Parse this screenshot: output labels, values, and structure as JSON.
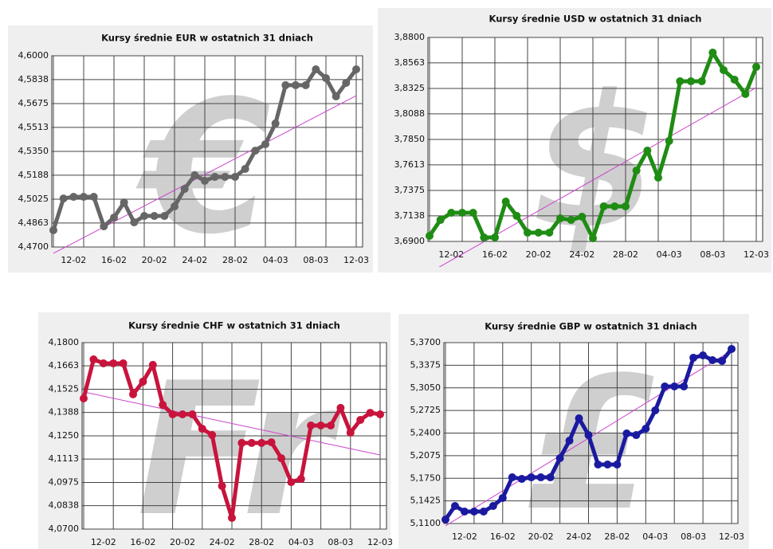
{
  "chart_data": [
    {
      "type": "line",
      "title": "Kursy średnie EUR w ostatnich 31 dniach",
      "watermark": "€",
      "color": "#666666",
      "trend_color": "#cc44cc",
      "grid": true,
      "categories": [
        null,
        null,
        "12-02",
        null,
        null,
        null,
        "16-02",
        null,
        null,
        null,
        "20-02",
        null,
        null,
        null,
        "24-02",
        null,
        null,
        null,
        "28-02",
        null,
        null,
        null,
        "04-03",
        null,
        null,
        null,
        "08-03",
        null,
        null,
        null,
        "12-03"
      ],
      "values": [
        4.4814,
        4.503,
        4.5041,
        4.5041,
        4.5041,
        4.4841,
        4.49,
        4.5003,
        4.4868,
        4.4911,
        4.4911,
        4.4911,
        4.4976,
        4.5095,
        4.5188,
        4.515,
        4.5177,
        4.5177,
        4.5177,
        4.5231,
        4.5355,
        4.5399,
        4.554,
        4.58,
        4.58,
        4.58,
        4.5908,
        4.5848,
        4.5724,
        4.5816,
        4.5908
      ],
      "trendline": [
        4.4657,
        4.5729
      ],
      "ylim": [
        4.47,
        4.6
      ],
      "yticks": [
        {
          "value": 4.47,
          "label": "4,4700"
        },
        {
          "value": 4.4863,
          "label": "4,4863"
        },
        {
          "value": 4.5025,
          "label": "4,5025"
        },
        {
          "value": 4.5188,
          "label": "4,5188"
        },
        {
          "value": 4.535,
          "label": "4,5350"
        },
        {
          "value": 4.5513,
          "label": "4,5513"
        },
        {
          "value": 4.5675,
          "label": "4,5675"
        },
        {
          "value": 4.5838,
          "label": "4,5838"
        },
        {
          "value": 4.6,
          "label": "4,6000"
        }
      ]
    },
    {
      "type": "line",
      "title": "Kursy średnie USD w ostatnich 31 dniach",
      "watermark": "$",
      "color": "#1f8c14",
      "trend_color": "#cc44cc",
      "grid": true,
      "categories": [
        null,
        null,
        "12-02",
        null,
        null,
        null,
        "16-02",
        null,
        null,
        null,
        "20-02",
        null,
        null,
        null,
        "24-02",
        null,
        null,
        null,
        "28-02",
        null,
        null,
        null,
        "04-03",
        null,
        null,
        null,
        "08-03",
        null,
        null,
        null,
        "12-03"
      ],
      "values": [
        3.6952,
        3.71,
        3.7167,
        3.7167,
        3.7167,
        3.6937,
        3.6937,
        3.7271,
        3.7138,
        3.6982,
        3.6982,
        3.6982,
        3.7115,
        3.71,
        3.713,
        3.693,
        3.7227,
        3.7227,
        3.7227,
        3.7561,
        3.7746,
        3.7494,
        3.7835,
        3.8392,
        3.8392,
        3.8392,
        3.8659,
        3.8496,
        3.8407,
        3.8273,
        3.8526
      ],
      "trendline": [
        3.661,
        3.8333
      ],
      "ylim": [
        3.69,
        3.88
      ],
      "yticks": [
        {
          "value": 3.69,
          "label": "3,6900"
        },
        {
          "value": 3.7138,
          "label": "3,7138"
        },
        {
          "value": 3.7375,
          "label": "3,7375"
        },
        {
          "value": 3.7613,
          "label": "3,7613"
        },
        {
          "value": 3.785,
          "label": "3,7850"
        },
        {
          "value": 3.8088,
          "label": "3,8088"
        },
        {
          "value": 3.8325,
          "label": "3,8325"
        },
        {
          "value": 3.8563,
          "label": "3,8563"
        },
        {
          "value": 3.88,
          "label": "3,8800"
        }
      ]
    },
    {
      "type": "line",
      "title": "Kursy średnie CHF w ostatnich 31 dniach",
      "watermark": "Fr",
      "color": "#c8143c",
      "trend_color": "#cc44cc",
      "grid": true,
      "categories": [
        null,
        null,
        "12-02",
        null,
        null,
        null,
        "16-02",
        null,
        null,
        null,
        "20-02",
        null,
        null,
        null,
        "24-02",
        null,
        null,
        null,
        "28-02",
        null,
        null,
        null,
        "04-03",
        null,
        null,
        null,
        "08-03",
        null,
        null,
        null,
        "12-03"
      ],
      "values": [
        4.1471,
        4.1701,
        4.1678,
        4.1678,
        4.1678,
        4.1495,
        4.157,
        4.1669,
        4.1433,
        4.1377,
        4.1377,
        4.1377,
        4.1292,
        4.1255,
        4.0954,
        4.0766,
        4.1208,
        4.1208,
        4.1208,
        4.1212,
        4.1118,
        4.0977,
        4.0996,
        4.1311,
        4.1311,
        4.1311,
        4.1415,
        4.1269,
        4.1344,
        4.1386,
        4.1377
      ],
      "trendline": [
        4.1509,
        4.1137
      ],
      "ylim": [
        4.07,
        4.18
      ],
      "yticks": [
        {
          "value": 4.07,
          "label": "4,0700"
        },
        {
          "value": 4.0838,
          "label": "4,0838"
        },
        {
          "value": 4.0975,
          "label": "4,0975"
        },
        {
          "value": 4.1113,
          "label": "4,1113"
        },
        {
          "value": 4.125,
          "label": "4,1250"
        },
        {
          "value": 4.1388,
          "label": "4,1388"
        },
        {
          "value": 4.1525,
          "label": "4,1525"
        },
        {
          "value": 4.1663,
          "label": "4,1663"
        },
        {
          "value": 4.18,
          "label": "4,1800"
        }
      ]
    },
    {
      "type": "line",
      "title": "Kursy średnie GBP w ostatnich 31 dniach",
      "watermark": "£",
      "color": "#1a1aa0",
      "trend_color": "#cc44cc",
      "grid": true,
      "categories": [
        null,
        null,
        "12-02",
        null,
        null,
        null,
        "16-02",
        null,
        null,
        null,
        "20-02",
        null,
        null,
        null,
        "24-02",
        null,
        null,
        null,
        "28-02",
        null,
        null,
        null,
        "04-03",
        null,
        null,
        null,
        "08-03",
        null,
        null,
        null,
        "12-03"
      ],
      "values": [
        5.1157,
        5.1352,
        5.1272,
        5.1272,
        5.1272,
        5.1352,
        5.1467,
        5.1764,
        5.1741,
        5.1764,
        5.1764,
        5.1764,
        5.2039,
        5.2291,
        5.2612,
        5.2371,
        5.1948,
        5.1948,
        5.1948,
        5.2394,
        5.2371,
        5.2463,
        5.2727,
        5.307,
        5.307,
        5.307,
        5.3483,
        5.3517,
        5.3448,
        5.3437,
        5.3609
      ],
      "trendline": [
        5.1066,
        5.3586
      ],
      "ylim": [
        5.11,
        5.37
      ],
      "yticks": [
        {
          "value": 5.11,
          "label": "5,1100"
        },
        {
          "value": 5.1425,
          "label": "5,1425"
        },
        {
          "value": 5.175,
          "label": "5,1750"
        },
        {
          "value": 5.2075,
          "label": "5,2075"
        },
        {
          "value": 5.24,
          "label": "5,2400"
        },
        {
          "value": 5.2725,
          "label": "5,2725"
        },
        {
          "value": 5.305,
          "label": "5,3050"
        },
        {
          "value": 5.3375,
          "label": "5,3375"
        },
        {
          "value": 5.37,
          "label": "5,3700"
        }
      ]
    }
  ]
}
